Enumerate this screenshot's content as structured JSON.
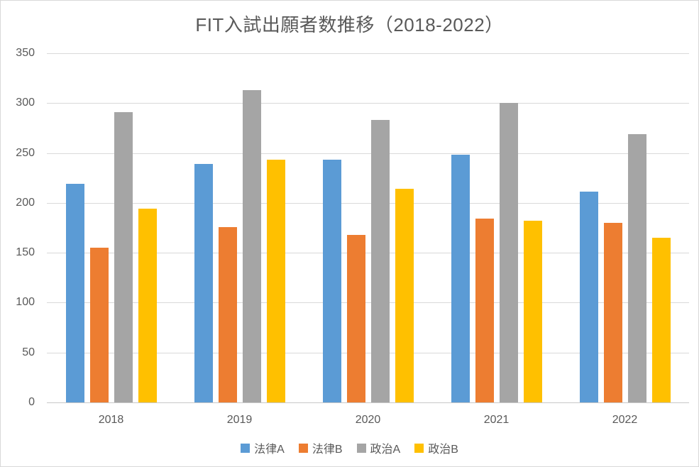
{
  "title": "FIT入試出願者数推移（2018-2022）",
  "chart_data": {
    "type": "bar",
    "title": "FIT入試出願者数推移（2018-2022）",
    "categories": [
      "2018",
      "2019",
      "2020",
      "2021",
      "2022"
    ],
    "series": [
      {
        "name": "法律A",
        "color": "#5B9BD5",
        "values": [
          219,
          239,
          243,
          248,
          211
        ]
      },
      {
        "name": "法律B",
        "color": "#ED7D31",
        "values": [
          155,
          176,
          168,
          184,
          180
        ]
      },
      {
        "name": "政治A",
        "color": "#A5A5A5",
        "values": [
          291,
          313,
          283,
          300,
          269
        ]
      },
      {
        "name": "政治B",
        "color": "#FFC000",
        "values": [
          194,
          243,
          214,
          182,
          165
        ]
      }
    ],
    "xlabel": "",
    "ylabel": "",
    "ylim": [
      0,
      350
    ],
    "ytick_interval": 50,
    "yticks": [
      0,
      50,
      100,
      150,
      200,
      250,
      300,
      350
    ],
    "grid": true,
    "legend_position": "bottom",
    "colors": {
      "gridline": "#D9D9D9",
      "axis_text": "#595959",
      "title_text": "#595959",
      "background": "#FFFFFF",
      "border": "#D9D9D9"
    }
  }
}
